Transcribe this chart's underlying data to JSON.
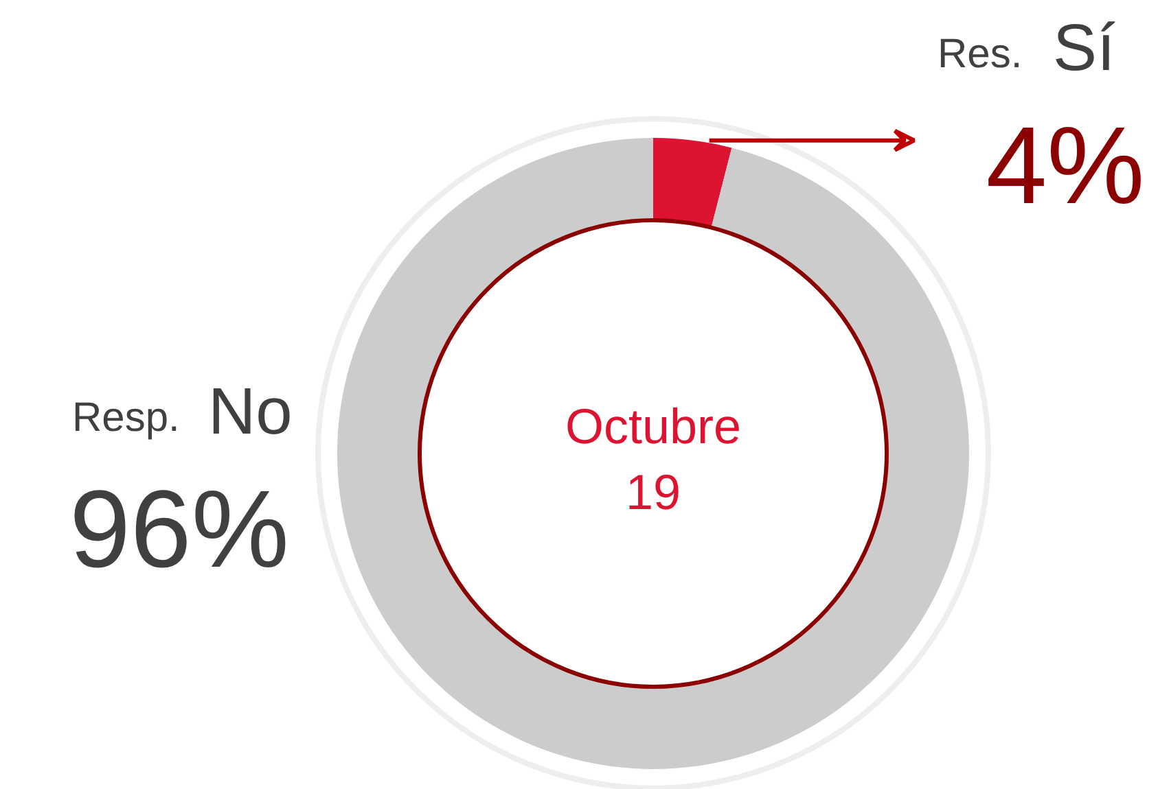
{
  "chart_data": {
    "type": "donut",
    "title": "Octubre 19",
    "categories": [
      "Res. Sí",
      "Resp. No"
    ],
    "values": [
      4,
      96
    ],
    "colors": [
      "#dc1431",
      "#cccccc"
    ],
    "value_labels": [
      "4%",
      "96%"
    ]
  }
}
